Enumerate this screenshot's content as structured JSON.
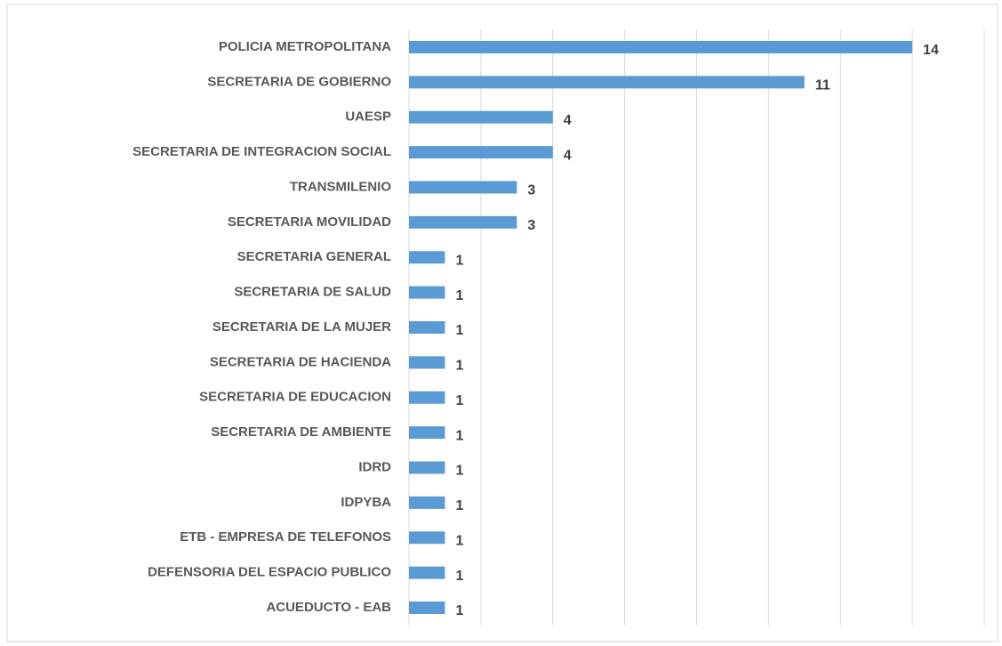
{
  "chart_data": {
    "type": "bar",
    "orientation": "horizontal",
    "categories": [
      "POLICIA METROPOLITANA",
      "SECRETARIA DE GOBIERNO",
      "UAESP",
      "SECRETARIA DE INTEGRACION SOCIAL",
      "TRANSMILENIO",
      "SECRETARIA MOVILIDAD",
      "SECRETARIA GENERAL",
      "SECRETARIA DE SALUD",
      "SECRETARIA DE LA MUJER",
      "SECRETARIA DE HACIENDA",
      "SECRETARIA DE EDUCACION",
      "SECRETARIA DE AMBIENTE",
      "IDRD",
      "IDPYBA",
      "ETB - EMPRESA DE TELEFONOS",
      "DEFENSORIA DEL ESPACIO PUBLICO",
      "ACUEDUCTO - EAB"
    ],
    "values": [
      14,
      11,
      4,
      4,
      3,
      3,
      1,
      1,
      1,
      1,
      1,
      1,
      1,
      1,
      1,
      1,
      1
    ],
    "color": "#5b9bd5",
    "xlim": [
      0,
      16
    ],
    "xticks": [
      0,
      2,
      4,
      6,
      8,
      10,
      12,
      14,
      16
    ],
    "grid": true
  }
}
